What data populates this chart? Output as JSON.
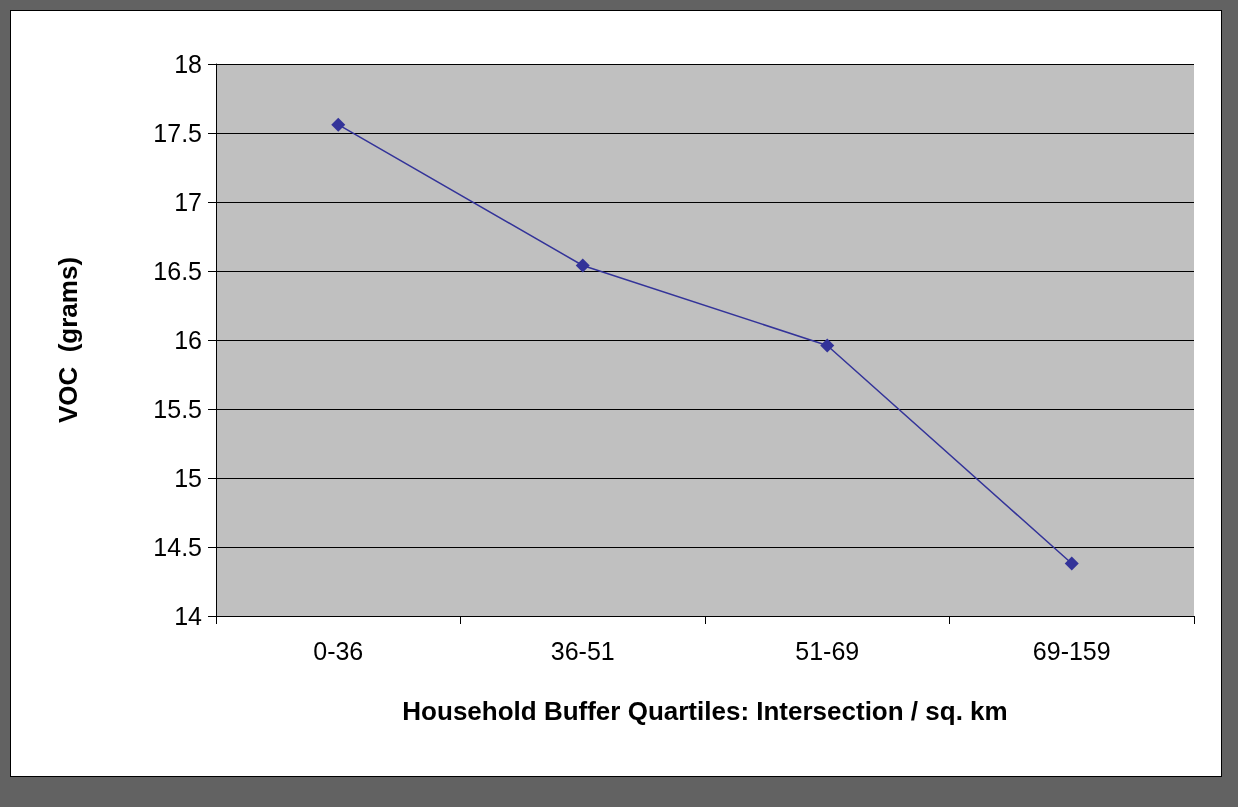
{
  "chart_data": {
    "type": "line",
    "xlabel": "Household Buffer Quartiles: Intersection / sq. km",
    "ylabel": "VOC  (grams)",
    "categories": [
      "0-36",
      "36-51",
      "51-69",
      "69-159"
    ],
    "series": [
      {
        "color": "#333399",
        "values": [
          17.56,
          16.54,
          15.96,
          14.38
        ]
      }
    ],
    "ylim": [
      14,
      18
    ],
    "yticks": [
      14,
      14.5,
      15,
      15.5,
      16,
      16.5,
      17,
      17.5,
      18
    ],
    "grid": "y",
    "marker": "diamond",
    "line_style": "solid"
  }
}
